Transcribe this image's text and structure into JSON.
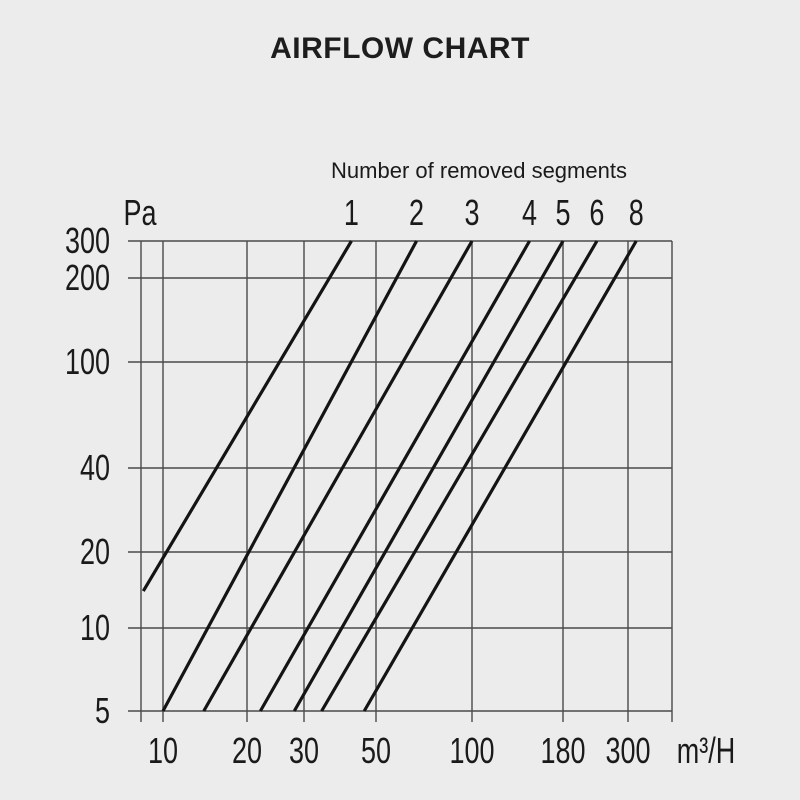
{
  "chart_data": {
    "type": "line",
    "title": "AIRFLOW CHART",
    "annotation": "Number of removed segments",
    "x_axis": {
      "unit": "m³/H",
      "scale": "log",
      "ticks": [
        10,
        20,
        30,
        50,
        100,
        180,
        300
      ],
      "range": [
        8.5,
        410
      ]
    },
    "y_axis": {
      "unit": "Pa",
      "scale": "log",
      "ticks": [
        300,
        200,
        100,
        40,
        20,
        10,
        5
      ],
      "range": [
        5,
        300
      ]
    },
    "grid": true,
    "legend_position": "top-edge-labels",
    "series": [
      {
        "label": "1",
        "points": [
          [
            8.5,
            14
          ],
          [
            42,
            300
          ]
        ]
      },
      {
        "label": "2",
        "points": [
          [
            10,
            5
          ],
          [
            67,
            300
          ]
        ]
      },
      {
        "label": "3",
        "points": [
          [
            14,
            5
          ],
          [
            100,
            300
          ]
        ]
      },
      {
        "label": "4",
        "points": [
          [
            22,
            5
          ],
          [
            145,
            300
          ]
        ]
      },
      {
        "label": "5",
        "points": [
          [
            28,
            5
          ],
          [
            180,
            300
          ]
        ]
      },
      {
        "label": "6",
        "points": [
          [
            34,
            5
          ],
          [
            235,
            300
          ]
        ]
      },
      {
        "label": "8",
        "points": [
          [
            46,
            5
          ],
          [
            320,
            300
          ]
        ]
      }
    ],
    "colors": {
      "background": "#ececec",
      "text": "#1a1a1a",
      "grid": "#4a4a4a",
      "line": "#141414"
    }
  }
}
